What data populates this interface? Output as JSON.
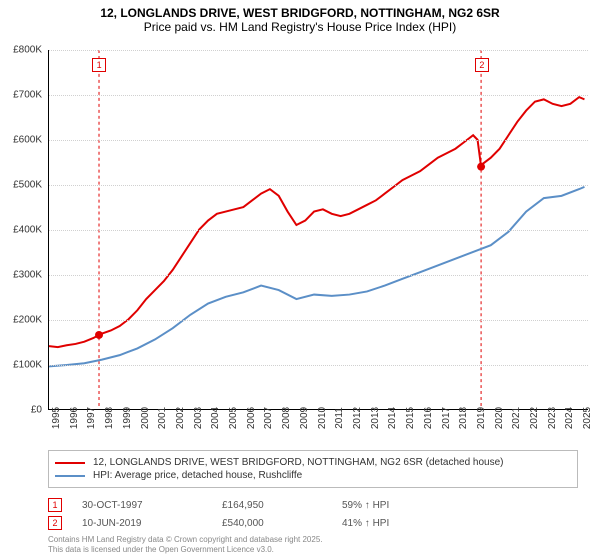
{
  "title": {
    "line1": "12, LONGLANDS DRIVE, WEST BRIDGFORD, NOTTINGHAM, NG2 6SR",
    "line2": "Price paid vs. HM Land Registry's House Price Index (HPI)"
  },
  "chart": {
    "type": "line",
    "background_color": "#ffffff",
    "grid_color": "#d0d0d0",
    "axis_color": "#000000",
    "x": {
      "min": 1995,
      "max": 2025.5,
      "ticks": [
        1995,
        1996,
        1997,
        1998,
        1999,
        2000,
        2001,
        2002,
        2003,
        2004,
        2005,
        2006,
        2007,
        2008,
        2009,
        2010,
        2011,
        2012,
        2013,
        2014,
        2015,
        2016,
        2017,
        2018,
        2019,
        2020,
        2021,
        2022,
        2023,
        2024,
        2025
      ]
    },
    "y": {
      "min": 0,
      "max": 800000,
      "ticks": [
        0,
        100000,
        200000,
        300000,
        400000,
        500000,
        600000,
        700000,
        800000
      ],
      "labels": [
        "£0",
        "£100K",
        "£200K",
        "£300K",
        "£400K",
        "£500K",
        "£600K",
        "£700K",
        "£800K"
      ]
    },
    "series": [
      {
        "name": "property",
        "label": "12, LONGLANDS DRIVE, WEST BRIDGFORD, NOTTINGHAM, NG2 6SR (detached house)",
        "color": "#e00000",
        "line_width": 2,
        "points": [
          [
            1995.0,
            140000
          ],
          [
            1995.5,
            138000
          ],
          [
            1996.0,
            142000
          ],
          [
            1996.5,
            145000
          ],
          [
            1997.0,
            150000
          ],
          [
            1997.5,
            158000
          ],
          [
            1997.83,
            164950
          ],
          [
            1998.0,
            168000
          ],
          [
            1998.5,
            175000
          ],
          [
            1999.0,
            185000
          ],
          [
            1999.5,
            200000
          ],
          [
            2000.0,
            220000
          ],
          [
            2000.5,
            245000
          ],
          [
            2001.0,
            265000
          ],
          [
            2001.5,
            285000
          ],
          [
            2002.0,
            310000
          ],
          [
            2002.5,
            340000
          ],
          [
            2003.0,
            370000
          ],
          [
            2003.5,
            400000
          ],
          [
            2004.0,
            420000
          ],
          [
            2004.5,
            435000
          ],
          [
            2005.0,
            440000
          ],
          [
            2005.5,
            445000
          ],
          [
            2006.0,
            450000
          ],
          [
            2006.5,
            465000
          ],
          [
            2007.0,
            480000
          ],
          [
            2007.5,
            490000
          ],
          [
            2008.0,
            475000
          ],
          [
            2008.5,
            440000
          ],
          [
            2009.0,
            410000
          ],
          [
            2009.5,
            420000
          ],
          [
            2010.0,
            440000
          ],
          [
            2010.5,
            445000
          ],
          [
            2011.0,
            435000
          ],
          [
            2011.5,
            430000
          ],
          [
            2012.0,
            435000
          ],
          [
            2012.5,
            445000
          ],
          [
            2013.0,
            455000
          ],
          [
            2013.5,
            465000
          ],
          [
            2014.0,
            480000
          ],
          [
            2014.5,
            495000
          ],
          [
            2015.0,
            510000
          ],
          [
            2015.5,
            520000
          ],
          [
            2016.0,
            530000
          ],
          [
            2016.5,
            545000
          ],
          [
            2017.0,
            560000
          ],
          [
            2017.5,
            570000
          ],
          [
            2018.0,
            580000
          ],
          [
            2018.5,
            595000
          ],
          [
            2019.0,
            610000
          ],
          [
            2019.25,
            600000
          ],
          [
            2019.45,
            540000
          ],
          [
            2019.5,
            545000
          ],
          [
            2020.0,
            560000
          ],
          [
            2020.5,
            580000
          ],
          [
            2021.0,
            610000
          ],
          [
            2021.5,
            640000
          ],
          [
            2022.0,
            665000
          ],
          [
            2022.5,
            685000
          ],
          [
            2023.0,
            690000
          ],
          [
            2023.5,
            680000
          ],
          [
            2024.0,
            675000
          ],
          [
            2024.5,
            680000
          ],
          [
            2025.0,
            695000
          ],
          [
            2025.3,
            690000
          ]
        ]
      },
      {
        "name": "hpi",
        "label": "HPI: Average price, detached house, Rushcliffe",
        "color": "#5b8fc7",
        "line_width": 2,
        "points": [
          [
            1995.0,
            95000
          ],
          [
            1996.0,
            98000
          ],
          [
            1997.0,
            102000
          ],
          [
            1998.0,
            110000
          ],
          [
            1999.0,
            120000
          ],
          [
            2000.0,
            135000
          ],
          [
            2001.0,
            155000
          ],
          [
            2002.0,
            180000
          ],
          [
            2003.0,
            210000
          ],
          [
            2004.0,
            235000
          ],
          [
            2005.0,
            250000
          ],
          [
            2006.0,
            260000
          ],
          [
            2007.0,
            275000
          ],
          [
            2008.0,
            265000
          ],
          [
            2009.0,
            245000
          ],
          [
            2010.0,
            255000
          ],
          [
            2011.0,
            252000
          ],
          [
            2012.0,
            255000
          ],
          [
            2013.0,
            262000
          ],
          [
            2014.0,
            275000
          ],
          [
            2015.0,
            290000
          ],
          [
            2016.0,
            305000
          ],
          [
            2017.0,
            320000
          ],
          [
            2018.0,
            335000
          ],
          [
            2019.0,
            350000
          ],
          [
            2020.0,
            365000
          ],
          [
            2021.0,
            395000
          ],
          [
            2022.0,
            440000
          ],
          [
            2023.0,
            470000
          ],
          [
            2024.0,
            475000
          ],
          [
            2025.0,
            490000
          ],
          [
            2025.3,
            495000
          ]
        ]
      }
    ],
    "sale_markers": [
      {
        "id": "1",
        "x": 1997.83,
        "y": 164950
      },
      {
        "id": "2",
        "x": 2019.45,
        "y": 540000
      }
    ]
  },
  "legend": {
    "item1": "12, LONGLANDS DRIVE, WEST BRIDGFORD, NOTTINGHAM, NG2 6SR (detached house)",
    "item2": "HPI: Average price, detached house, Rushcliffe"
  },
  "sales": [
    {
      "id": "1",
      "date": "30-OCT-1997",
      "price": "£164,950",
      "hpi": "59% ↑ HPI"
    },
    {
      "id": "2",
      "date": "10-JUN-2019",
      "price": "£540,000",
      "hpi": "41% ↑ HPI"
    }
  ],
  "footnote": {
    "line1": "Contains HM Land Registry data © Crown copyright and database right 2025.",
    "line2": "This data is licensed under the Open Government Licence v3.0."
  }
}
